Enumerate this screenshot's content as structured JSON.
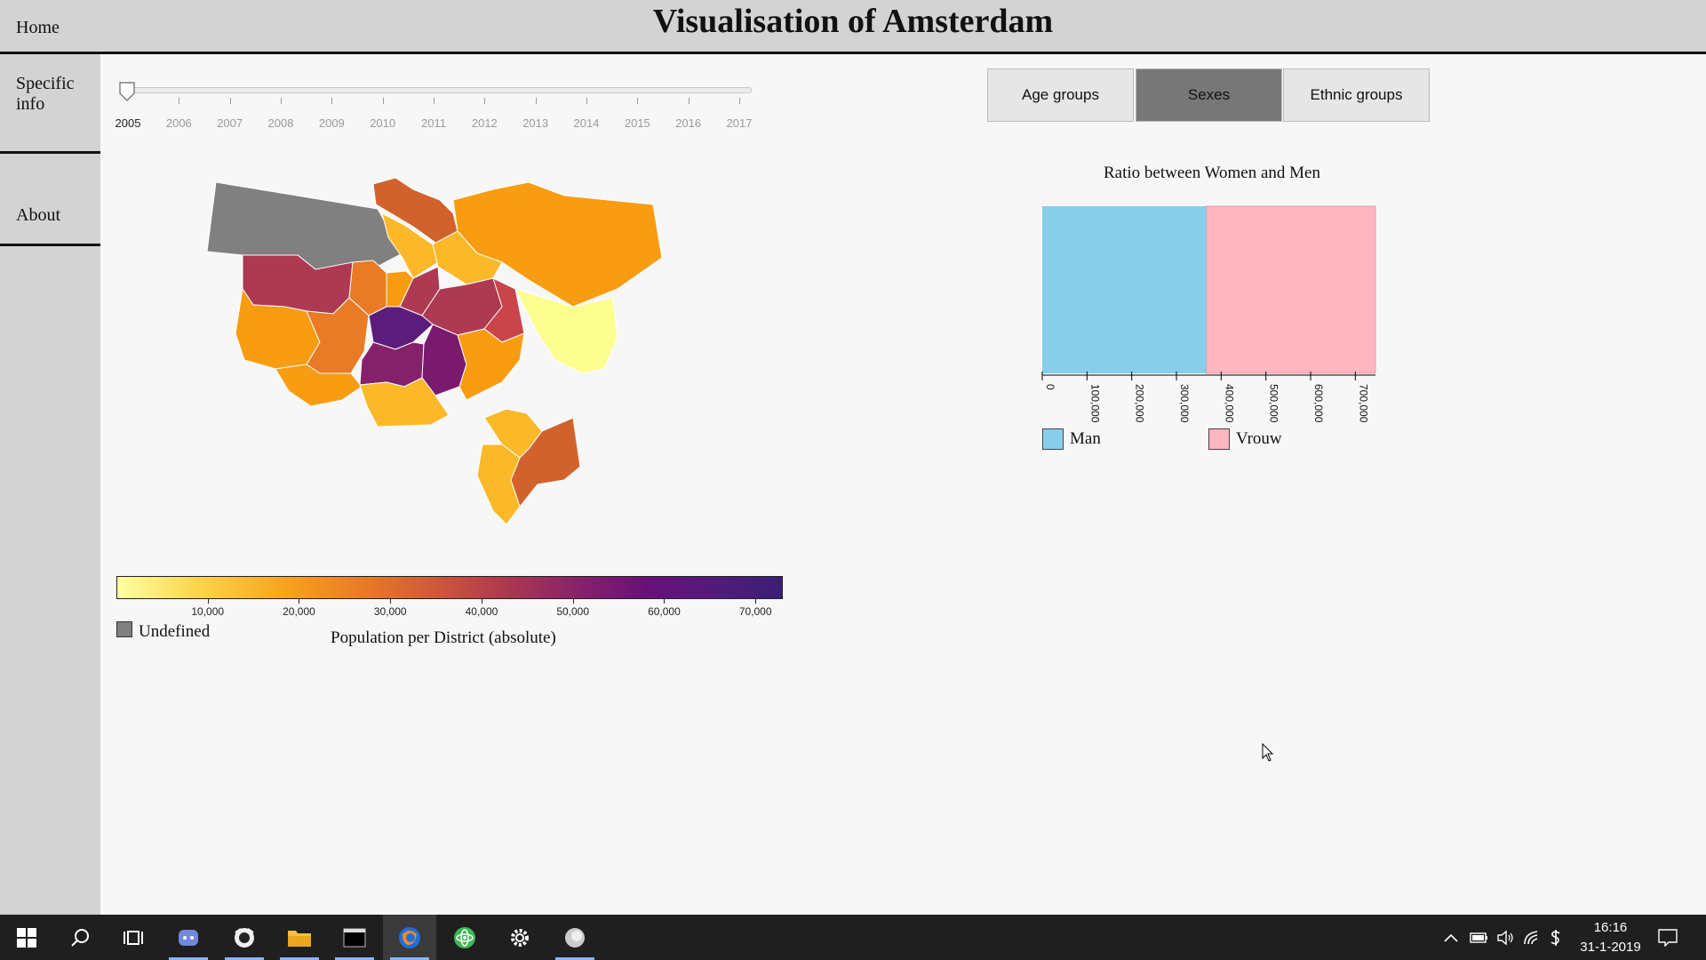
{
  "header": {
    "home_label": "Home",
    "title": "Visualisation of Amsterdam"
  },
  "sidebar": {
    "items": [
      {
        "label": "Specific info"
      },
      {
        "label": "About"
      }
    ]
  },
  "slider": {
    "years": [
      "2005",
      "2006",
      "2007",
      "2008",
      "2009",
      "2010",
      "2011",
      "2012",
      "2013",
      "2014",
      "2015",
      "2016",
      "2017"
    ],
    "selected": "2005"
  },
  "map_legend": {
    "ticks": [
      "10,000",
      "20,000",
      "30,000",
      "40,000",
      "50,000",
      "60,000",
      "70,000"
    ],
    "undefined_label": "Undefined",
    "title": "Population per District (absolute)",
    "colors": {
      "low": "#fcffa4",
      "high": "#3b1f73",
      "undefined": "#808080"
    }
  },
  "tabs": [
    {
      "label": "Age groups",
      "active": false
    },
    {
      "label": "Sexes",
      "active": true
    },
    {
      "label": "Ethnic groups",
      "active": false
    }
  ],
  "chart_data": {
    "type": "bar",
    "title": "Ratio between Women and Men",
    "orientation": "horizontal-stacked",
    "series": [
      {
        "name": "Man",
        "value": 367000,
        "color": "#87ceeb"
      },
      {
        "name": "Vrouw",
        "value": 378000,
        "color": "#ffb6c1"
      }
    ],
    "xlim": [
      0,
      745000
    ],
    "xticks": [
      "0",
      "100,000",
      "200,000",
      "300,000",
      "400,000",
      "500,000",
      "600,000",
      "700,000"
    ]
  },
  "taskbar": {
    "apps": [
      "windows-start",
      "search",
      "task-view",
      "discord",
      "bee-app",
      "file-explorer",
      "terminal",
      "firefox",
      "atom",
      "settings",
      "media-app"
    ],
    "clock_time": "16:16",
    "clock_date": "31-1-2019"
  }
}
